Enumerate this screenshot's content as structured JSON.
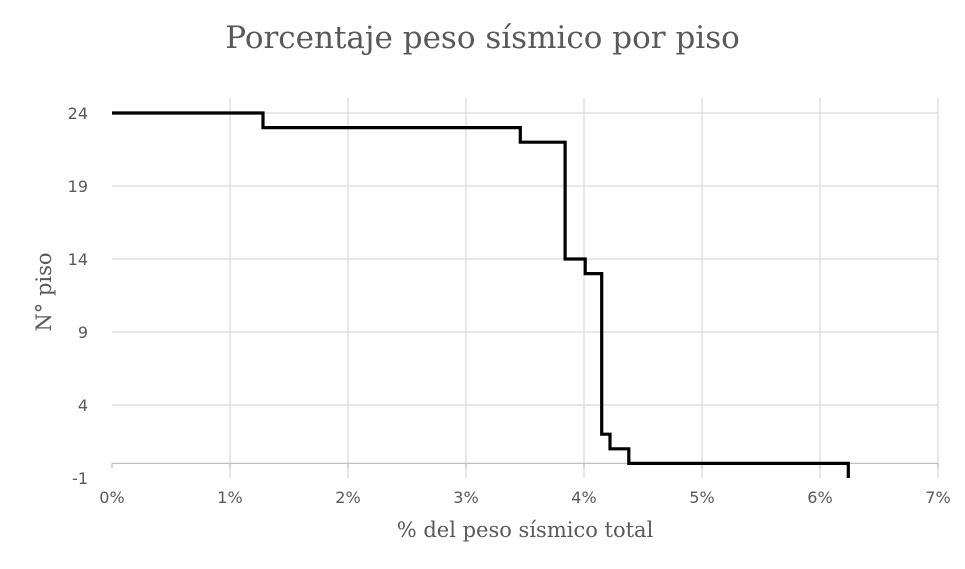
{
  "chart_data": {
    "type": "line",
    "title": "Porcentaje peso sísmico por piso",
    "xlabel": "% del peso sísmico total",
    "ylabel": "N° piso",
    "xlim": [
      0,
      7
    ],
    "ylim": [
      -1,
      24
    ],
    "x_ticks": [
      "0%",
      "1%",
      "2%",
      "3%",
      "4%",
      "5%",
      "6%",
      "7%"
    ],
    "y_ticks": [
      "24",
      "19",
      "14",
      "9",
      "4",
      "-1"
    ],
    "grid": true,
    "legend": "none",
    "line_color": "#000000",
    "series": [
      {
        "step": true,
        "x": [
          0.0,
          1.28,
          3.46,
          3.84,
          4.01,
          4.15,
          4.15,
          4.15,
          4.17,
          4.17,
          4.22,
          4.24,
          4.38,
          6.24
        ],
        "y": [
          24,
          23,
          22,
          14,
          13,
          3,
          2.5,
          2,
          2,
          2,
          1,
          1,
          0,
          -1
        ]
      }
    ]
  }
}
